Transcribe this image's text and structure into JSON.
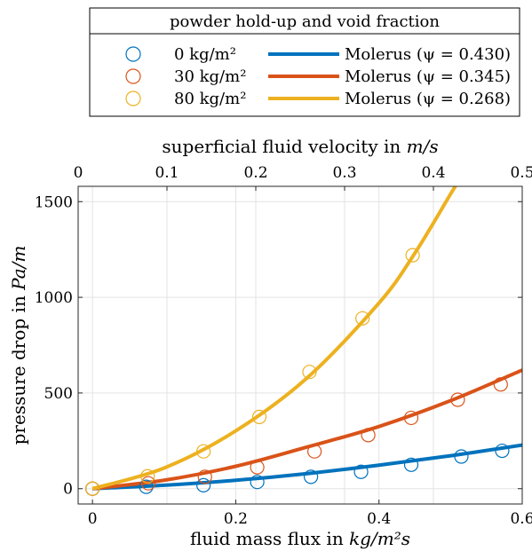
{
  "chart_data": {
    "type": "line",
    "xlabel_prefix": "fluid mass flux in ",
    "xlabel_unit": "kg/m²s",
    "ylabel_prefix": "pressure drop in ",
    "ylabel_unit": "Pa/m",
    "x2label_prefix": "superficial fluid velocity in ",
    "x2label_unit": "m/s",
    "xlim": [
      -0.02,
      0.6
    ],
    "ylim": [
      -80,
      1580
    ],
    "x2lim": [
      0,
      0.5
    ],
    "x_ticks": [
      0,
      0.2,
      0.4,
      0.6
    ],
    "x_tick_labels": [
      "0",
      "0.2",
      "0.4",
      "0.6"
    ],
    "y_ticks": [
      0,
      500,
      1000,
      1500
    ],
    "y_tick_labels": [
      "0",
      "500",
      "1000",
      "1500"
    ],
    "x2_ticks": [
      0,
      0.1,
      0.2,
      0.3,
      0.4,
      0.5
    ],
    "x2_tick_labels": [
      "0",
      "0.1",
      "0.2",
      "0.3",
      "0.4",
      "0.5"
    ],
    "grid": true,
    "legend": {
      "title": "powder hold-up and void fraction",
      "placement": "top",
      "entries": [
        {
          "marker_label": "0 kg/m²",
          "line_label": "Molerus (ψ = 0.430)",
          "color": "#0072BD"
        },
        {
          "marker_label": "30 kg/m²",
          "line_label": "Molerus (ψ = 0.345)",
          "color": "#D95319"
        },
        {
          "marker_label": "80 kg/m²",
          "line_label": "Molerus (ψ = 0.268)",
          "color": "#EDB120"
        }
      ]
    },
    "series": [
      {
        "color": "#0072BD",
        "points": [
          [
            0,
            0
          ],
          [
            0.075,
            10
          ],
          [
            0.155,
            18
          ],
          [
            0.23,
            35
          ],
          [
            0.305,
            62
          ],
          [
            0.375,
            88
          ],
          [
            0.445,
            125
          ],
          [
            0.515,
            168
          ],
          [
            0.572,
            198
          ]
        ],
        "curve": [
          [
            0,
            0
          ],
          [
            0.1,
            18
          ],
          [
            0.2,
            44
          ],
          [
            0.3,
            79
          ],
          [
            0.4,
            123
          ],
          [
            0.5,
            172
          ],
          [
            0.6,
            228
          ]
        ]
      },
      {
        "color": "#D95319",
        "points": [
          [
            0,
            0
          ],
          [
            0.078,
            28
          ],
          [
            0.157,
            62
          ],
          [
            0.23,
            112
          ],
          [
            0.31,
            195
          ],
          [
            0.385,
            280
          ],
          [
            0.445,
            370
          ],
          [
            0.51,
            465
          ],
          [
            0.57,
            545
          ]
        ],
        "curve": [
          [
            0,
            0
          ],
          [
            0.1,
            44
          ],
          [
            0.2,
            117
          ],
          [
            0.3,
            218
          ],
          [
            0.4,
            325
          ],
          [
            0.5,
            460
          ],
          [
            0.6,
            620
          ]
        ]
      },
      {
        "color": "#EDB120",
        "points": [
          [
            0,
            0
          ],
          [
            0.077,
            65
          ],
          [
            0.155,
            195
          ],
          [
            0.233,
            375
          ],
          [
            0.303,
            610
          ],
          [
            0.377,
            890
          ],
          [
            0.447,
            1220
          ]
        ],
        "curve": [
          [
            0,
            0
          ],
          [
            0.1,
            108
          ],
          [
            0.2,
            302
          ],
          [
            0.3,
            580
          ],
          [
            0.4,
            970
          ],
          [
            0.45,
            1230
          ],
          [
            0.5,
            1540
          ],
          [
            0.51,
            1600
          ]
        ]
      }
    ]
  }
}
